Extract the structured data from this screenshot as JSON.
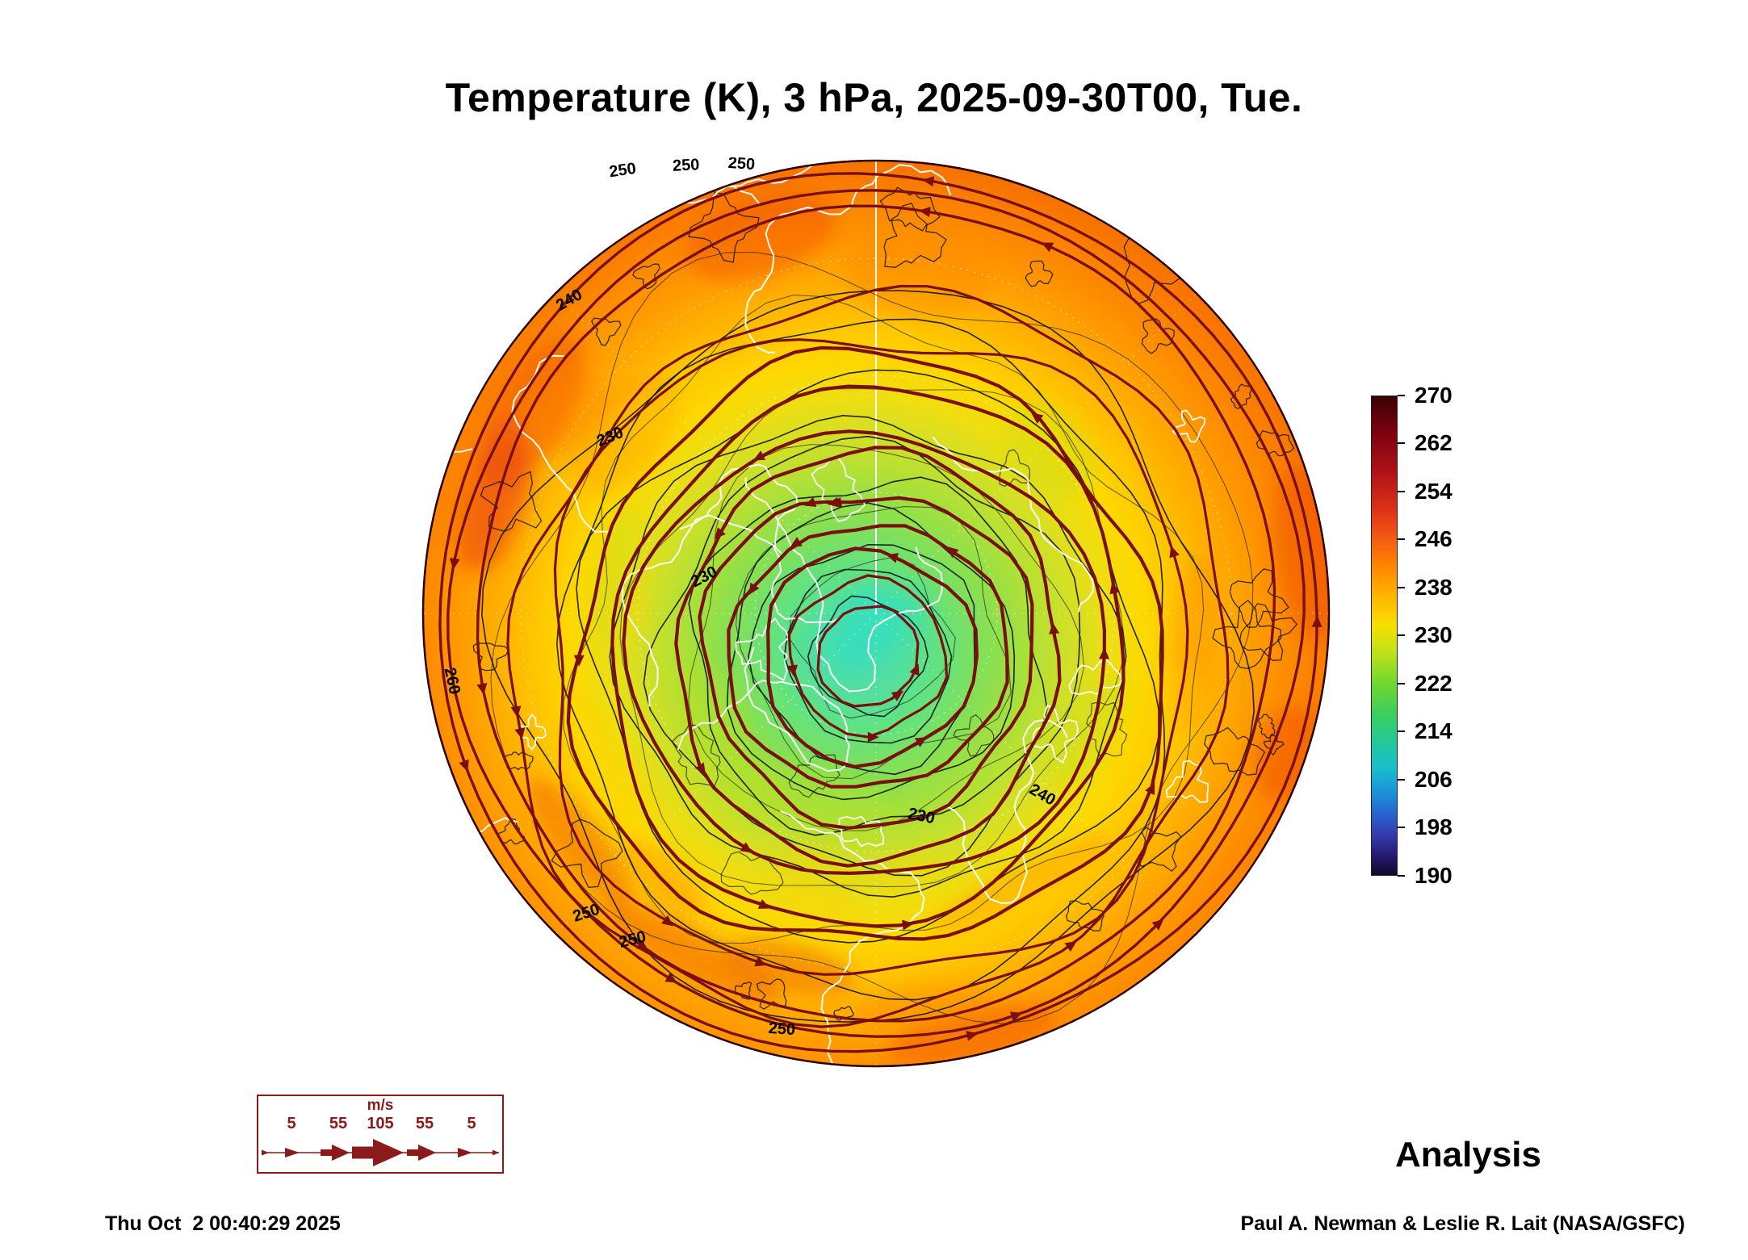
{
  "title": "Temperature (K), 3 hPa, 2025-09-30T00, Tue.",
  "map": {
    "contour_labels": [
      "250",
      "250",
      "250",
      "240",
      "230",
      "230",
      "230",
      "240",
      "250",
      "250",
      "260",
      "250"
    ]
  },
  "colorbar": {
    "labels": [
      "270",
      "262",
      "254",
      "246",
      "238",
      "230",
      "222",
      "214",
      "206",
      "198",
      "190"
    ],
    "min": 190,
    "max": 270,
    "step": 8,
    "units": "K"
  },
  "wind_legend": {
    "units_label": "m/s",
    "speed_labels": [
      "5",
      "55",
      "105",
      "55",
      "5"
    ]
  },
  "annotations": {
    "analysis_label": "Analysis"
  },
  "footer": {
    "generated_timestamp": "Thu Oct  2 00:40:29 2025",
    "credit": "Paul A. Newman & Leslie R. Lait (NASA/GSFC)"
  },
  "colors": {
    "streamline": "#7a0f0f",
    "contour": "#151515",
    "coastline": "#ffffff",
    "legend_accent": "#8b1a1a",
    "title_text": "#000000"
  }
}
